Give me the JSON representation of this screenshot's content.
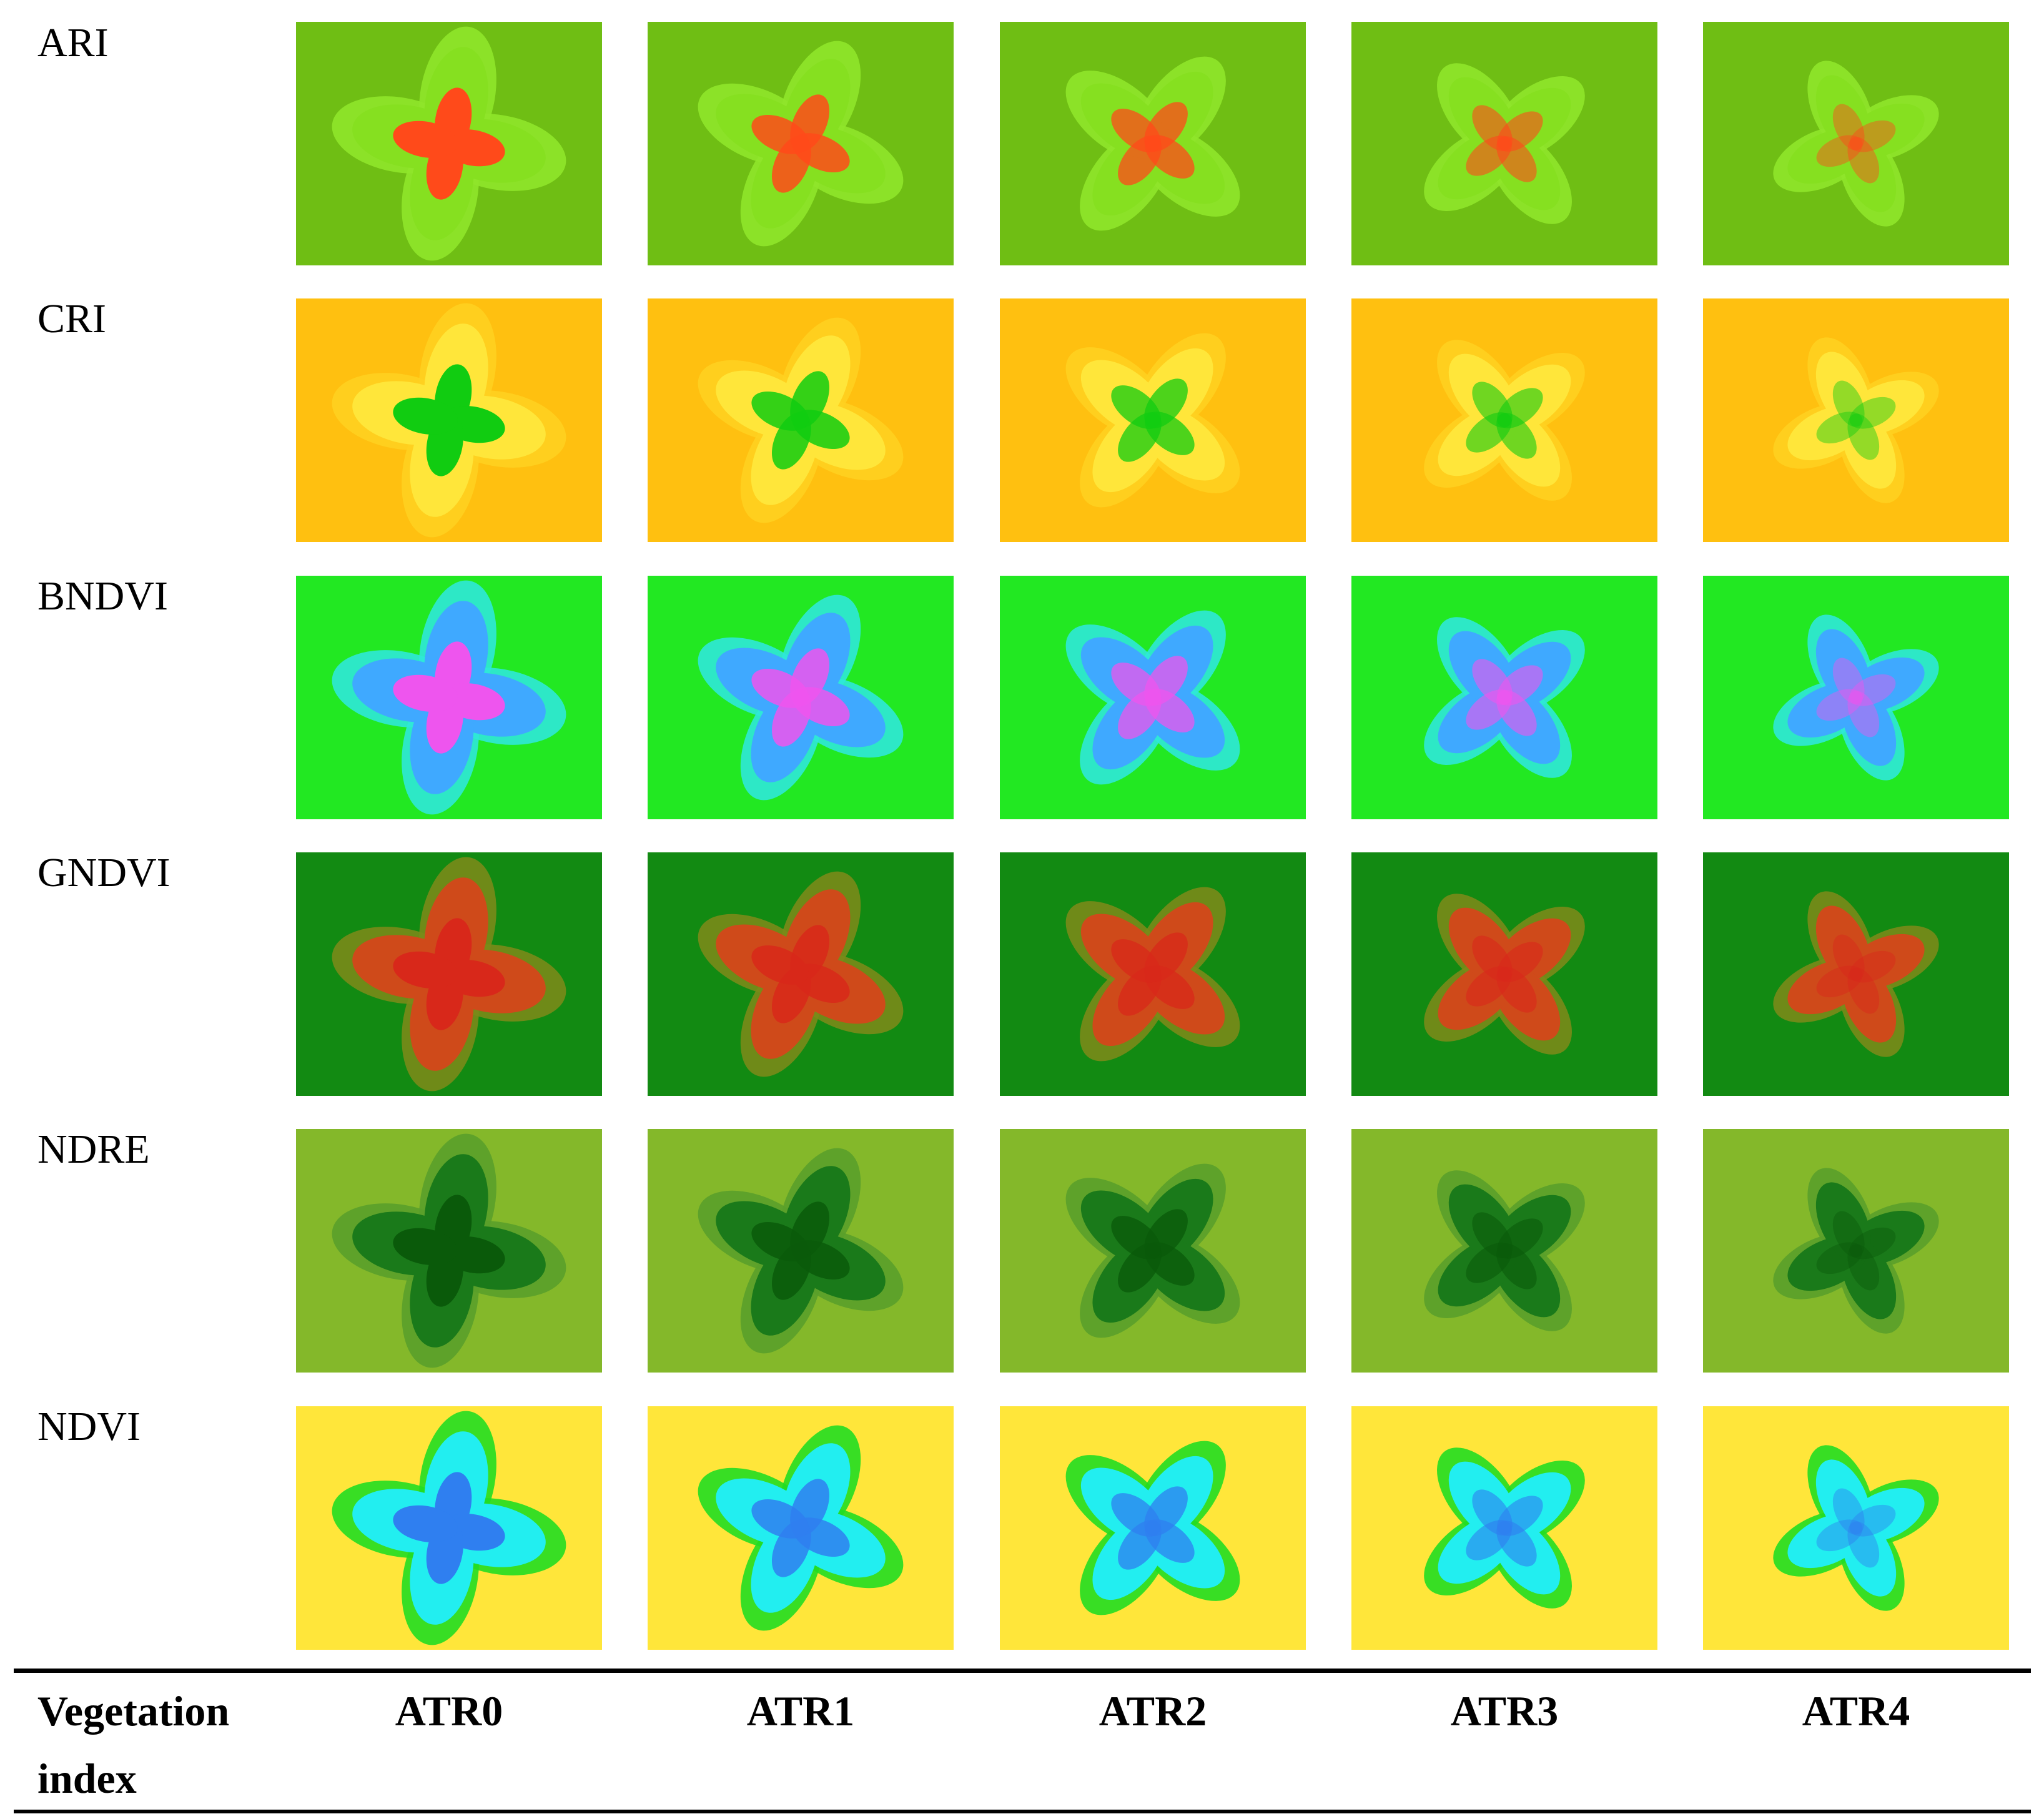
{
  "figure": {
    "rows": [
      {
        "label": "ARI",
        "scheme": "ari"
      },
      {
        "label": "CRI",
        "scheme": "cri"
      },
      {
        "label": "BNDVI",
        "scheme": "bndvi"
      },
      {
        "label": "GNDVI",
        "scheme": "gndvi"
      },
      {
        "label": "NDRE",
        "scheme": "ndre"
      },
      {
        "label": "NDVI",
        "scheme": "ndvi"
      }
    ],
    "columns": [
      {
        "label": "ATR0",
        "intensity": 1.0
      },
      {
        "label": "ATR1",
        "intensity": 0.85
      },
      {
        "label": "ATR2",
        "intensity": 0.75
      },
      {
        "label": "ATR3",
        "intensity": 0.6
      },
      {
        "label": "ATR4",
        "intensity": 0.45
      }
    ],
    "header_first_line1": "Vegetation",
    "header_first_line2": "index",
    "colors": {
      "ari": {
        "bg": "#6fbe14",
        "hi": "#ff4a1a",
        "mid": "#86e020",
        "edge": "#8fe62a"
      },
      "cri": {
        "bg": "#ffc010",
        "hi": "#11cc11",
        "mid": "#ffe63a",
        "edge": "#ffd020"
      },
      "bndvi": {
        "bg": "#22e822",
        "hi": "#ee55ee",
        "mid": "#3fa9ff",
        "edge": "#2fe8d8"
      },
      "gndvi": {
        "bg": "#128a12",
        "hi": "#d8281a",
        "mid": "#cf4a1a",
        "edge": "#7a8a1a"
      },
      "ndre": {
        "bg": "#84b82a",
        "hi": "#0a5a0a",
        "mid": "#1a7a1a",
        "edge": "#5aa02a"
      },
      "ndvi": {
        "bg": "#ffe63a",
        "hi": "#2f7ff0",
        "mid": "#22eef0",
        "edge": "#22dd22"
      }
    }
  }
}
